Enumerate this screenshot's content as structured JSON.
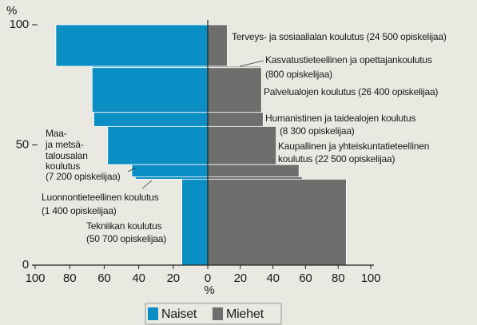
{
  "chart_data": {
    "type": "butterfly-mekko",
    "y_label": "%",
    "x_label": "%",
    "ylim": [
      0,
      100
    ],
    "yticks": [
      0,
      50,
      100
    ],
    "xlim": [
      0,
      100
    ],
    "xticks": [
      0,
      20,
      40,
      60,
      80,
      100
    ],
    "categories": [
      [
        "Terveys- ja sosiaalialan koulutus (24 500 opiskelijaa)"
      ],
      [
        "Kasvatustieteellinen ja opettajankoulutus",
        "(800 opiskelijaa)"
      ],
      [
        "Palvelualojen koulutus (26 400 opiskelijaa)"
      ],
      [
        "Humanistinen ja taidealojen koulutus",
        "(8 300 opiskelijaa)"
      ],
      [
        "Kaupallinen ja yhteiskuntatieteellinen",
        "koulutus (22 500 opiskelijaa)"
      ],
      [
        "Maa-",
        "ja metsä-",
        "talousalan",
        "koulutus",
        "(7 200 opiskelijaa)"
      ],
      [
        "Luonnontieteellinen koulutus",
        "(1 400 opiskelijaa)"
      ],
      [
        "Tekniikan koulutus",
        "(50 700 opiskelijaa)"
      ]
    ],
    "counts": [
      24500,
      800,
      26400,
      8300,
      22500,
      7200,
      1400,
      50700
    ],
    "series": [
      {
        "name": "Naiset",
        "color": "#0b8ec4",
        "values": [
          88,
          67,
          67,
          66,
          58,
          44,
          42,
          15
        ]
      },
      {
        "name": "Miehet",
        "color": "#6e6e6c",
        "values": [
          12,
          33,
          33,
          34,
          42,
          56,
          58,
          85
        ]
      }
    ]
  }
}
